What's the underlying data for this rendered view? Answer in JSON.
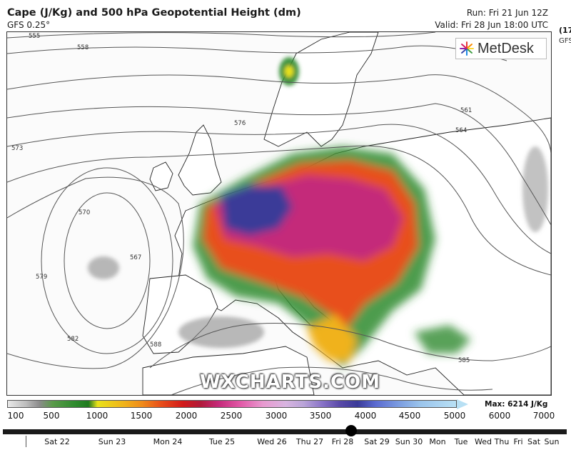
{
  "header": {
    "title": "Cape (J/Kg) and 500 hPa Geopotential Height (dm)",
    "model": "GFS 0.25°",
    "run": "Run: Fri 21 Jun 12Z",
    "valid": "Valid: Fri 28 Jun 18:00 UTC",
    "clipped_right_1": "(17",
    "clipped_right_2": "GFS"
  },
  "logo": {
    "text": "MetDesk",
    "icon": "metdesk-star-icon"
  },
  "watermark": "WXCHARTS.COM",
  "contours": {
    "labels": [
      "555",
      "558",
      "561",
      "564",
      "567",
      "570",
      "573",
      "576",
      "579",
      "582",
      "585",
      "588"
    ]
  },
  "colorbar": {
    "ticks": [
      "100",
      "500",
      "1000",
      "1500",
      "2000",
      "2500",
      "3000",
      "3500",
      "4000",
      "4500",
      "5000",
      "6000",
      "7000"
    ],
    "max_label": "Max: 6214 J/Kg"
  },
  "timeline": {
    "days": [
      "Sat 22",
      "Sun 23",
      "Mon 24",
      "Tue 25",
      "Wed 26",
      "Thu 27",
      "Fri 28",
      "Sat 29",
      "Sun 30",
      "Mon",
      "Tue",
      "Wed",
      "Thu",
      "Fri",
      "Sat",
      "Sun"
    ],
    "selected": "Fri 28"
  },
  "colors": {
    "cape_low": "#2e8b2e",
    "cape_mid": "#e8501a",
    "cape_high": "#c42a7a",
    "cape_max": "#3a3a98"
  }
}
